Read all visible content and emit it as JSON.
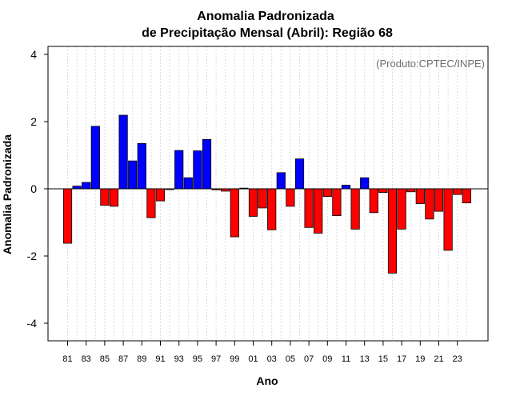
{
  "chart_data": {
    "type": "bar",
    "title": "Anomalia Padronizada",
    "subtitle": "de Precipitação Mensal (Abril): Região 68",
    "xlabel": "Ano",
    "ylabel": "Anomalia Padronizada",
    "annotation": "(Produto:CPTEC/INPE)",
    "ylim": [
      -4.5,
      4.2
    ],
    "yticks": [
      4,
      2,
      0,
      -2,
      -4
    ],
    "ytick_labels": [
      "4",
      "2",
      "0",
      "-2",
      "-4"
    ],
    "xtick_labels": [
      "81",
      "83",
      "85",
      "87",
      "89",
      "91",
      "93",
      "95",
      "97",
      "99",
      "01",
      "03",
      "05",
      "07",
      "09",
      "11",
      "13",
      "15",
      "17",
      "19",
      "21",
      "23"
    ],
    "grid": true,
    "positive_color": "#0000ff",
    "negative_color": "#ff0000",
    "categories": [
      "1981",
      "1982",
      "1983",
      "1984",
      "1985",
      "1986",
      "1987",
      "1988",
      "1989",
      "1990",
      "1991",
      "1992",
      "1993",
      "1994",
      "1995",
      "1996",
      "1997",
      "1998",
      "1999",
      "2000",
      "2001",
      "2002",
      "2003",
      "2004",
      "2005",
      "2006",
      "2007",
      "2008",
      "2009",
      "2010",
      "2011",
      "2012",
      "2013",
      "2014",
      "2015",
      "2016",
      "2017",
      "2018",
      "2019",
      "2020",
      "2021",
      "2022",
      "2023",
      "2024"
    ],
    "values": [
      -1.62,
      0.08,
      0.19,
      1.86,
      -0.49,
      -0.52,
      2.19,
      0.83,
      1.35,
      -0.86,
      -0.36,
      -0.02,
      1.14,
      0.33,
      1.13,
      1.47,
      -0.03,
      -0.07,
      -1.43,
      0.02,
      -0.82,
      -0.57,
      -1.22,
      0.48,
      -0.52,
      0.89,
      -1.15,
      -1.32,
      -0.23,
      -0.8,
      0.11,
      -1.2,
      0.33,
      -0.71,
      -0.11,
      -2.51,
      -1.2,
      -0.09,
      -0.44,
      -0.9,
      -0.67,
      -1.83,
      -0.17,
      -0.42
    ]
  }
}
